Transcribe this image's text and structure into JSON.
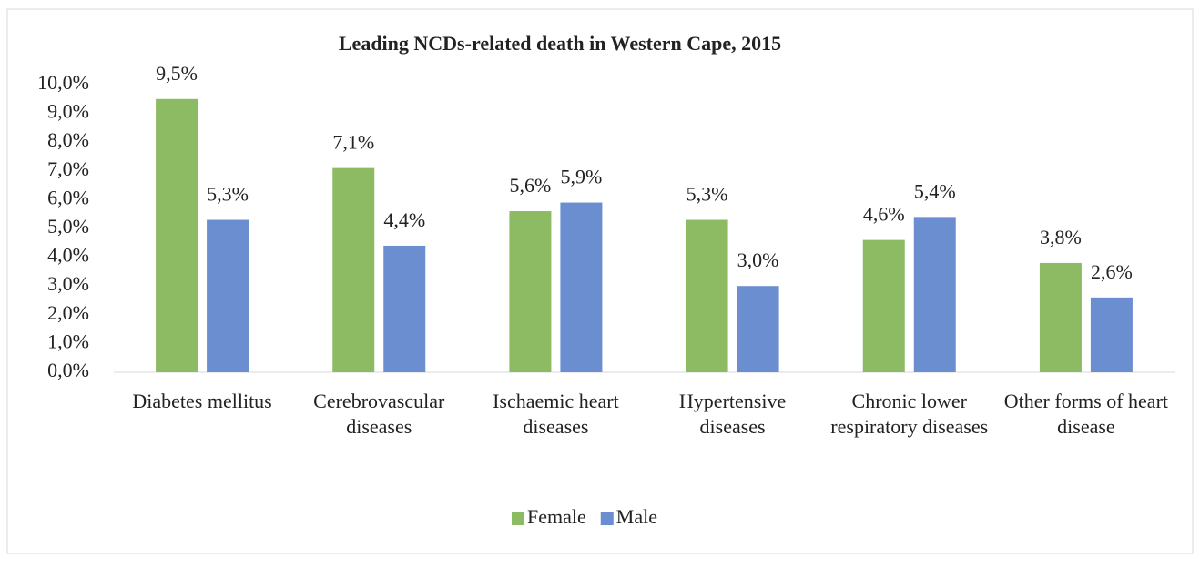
{
  "chart_data": {
    "type": "bar",
    "title": "Leading NCDs-related death in Western Cape, 2015",
    "categories": [
      "Diabetes mellitus",
      "Cerebrovascular diseases",
      "Ischaemic heart diseases",
      "Hypertensive diseases",
      "Chronic lower respiratory diseases",
      "Other forms of heart disease"
    ],
    "series": [
      {
        "name": "Female",
        "color": "#8cbb63",
        "values": [
          9.5,
          7.1,
          5.6,
          5.3,
          4.6,
          3.8
        ],
        "value_labels": [
          "9,5%",
          "7,1%",
          "5,6%",
          "5,3%",
          "4,6%",
          "3,8%"
        ]
      },
      {
        "name": "Male",
        "color": "#6a8ed0",
        "values": [
          5.3,
          4.4,
          5.9,
          3.0,
          5.4,
          2.6
        ],
        "value_labels": [
          "5,3%",
          "4,4%",
          "5,9%",
          "3,0%",
          "5,4%",
          "2,6%"
        ]
      }
    ],
    "ylim": [
      0,
      10
    ],
    "yticks": [
      {
        "value": 0,
        "label": "0,0%"
      },
      {
        "value": 1,
        "label": "1,0%"
      },
      {
        "value": 2,
        "label": "2,0%"
      },
      {
        "value": 3,
        "label": "3,0%"
      },
      {
        "value": 4,
        "label": "4,0%"
      },
      {
        "value": 5,
        "label": "5,0%"
      },
      {
        "value": 6,
        "label": "6,0%"
      },
      {
        "value": 7,
        "label": "7,0%"
      },
      {
        "value": 8,
        "label": "8,0%"
      },
      {
        "value": 9,
        "label": "9,0%"
      },
      {
        "value": 10,
        "label": "10,0%"
      }
    ],
    "legend": "bottom"
  }
}
